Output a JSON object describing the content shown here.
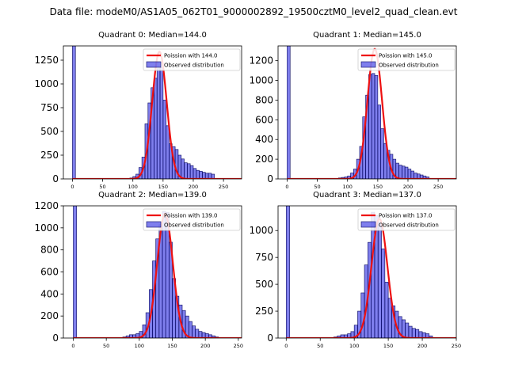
{
  "figure": {
    "suptitle": "Data file: modeM0/AS1A05_062T01_9000002892_19500cztM0_level2_quad_clean.evt"
  },
  "colors": {
    "bar_fill": "#7f7fee",
    "bar_edge": "#1a1a6e",
    "poisson_line": "#ee1111"
  },
  "chart_data": [
    {
      "type": "bar",
      "title": "Quadrant 0: Median=144.0",
      "legend": [
        "Poission with 144.0",
        "Observed distribution"
      ],
      "legend_position": "top-right",
      "xlim": [
        -15,
        280
      ],
      "ylim": [
        0,
        1400
      ],
      "xticks": [
        0,
        50,
        100,
        150,
        200,
        250
      ],
      "yticks": [
        0,
        250,
        500,
        750,
        1000,
        1250
      ],
      "bin_width": 5,
      "bins": [
        0,
        90,
        95,
        100,
        105,
        110,
        115,
        120,
        125,
        130,
        135,
        140,
        145,
        150,
        155,
        160,
        165,
        170,
        175,
        180,
        185,
        190,
        195,
        200,
        205,
        210,
        215,
        220,
        225,
        230
      ],
      "counts": [
        1400,
        5,
        10,
        25,
        50,
        120,
        230,
        580,
        800,
        960,
        1060,
        1160,
        1170,
        830,
        560,
        370,
        340,
        310,
        250,
        210,
        170,
        160,
        140,
        110,
        90,
        80,
        70,
        60,
        60,
        50
      ],
      "poisson_mean": 144.0,
      "poisson_peak": 1340
    },
    {
      "type": "bar",
      "title": "Quadrant 1: Median=145.0",
      "legend": [
        "Poission with 145.0",
        "Observed distribution"
      ],
      "legend_position": "top-right",
      "xlim": [
        -15,
        280
      ],
      "ylim": [
        0,
        1350
      ],
      "xticks": [
        0,
        50,
        100,
        150,
        200,
        250
      ],
      "yticks": [
        0,
        200,
        400,
        600,
        800,
        1000,
        1200
      ],
      "bin_width": 5,
      "bins": [
        0,
        85,
        90,
        95,
        100,
        105,
        110,
        115,
        120,
        125,
        130,
        135,
        140,
        145,
        150,
        155,
        160,
        165,
        170,
        175,
        180,
        185,
        190,
        195,
        200,
        205,
        210,
        215,
        220,
        225,
        230
      ],
      "counts": [
        1350,
        10,
        15,
        20,
        30,
        60,
        100,
        200,
        330,
        630,
        850,
        1060,
        1070,
        1050,
        750,
        510,
        360,
        290,
        250,
        200,
        160,
        140,
        130,
        120,
        100,
        80,
        60,
        50,
        40,
        30,
        20
      ],
      "poisson_mean": 145.0,
      "poisson_peak": 1320
    },
    {
      "type": "bar",
      "title": "Quadrant 2: Median=139.0",
      "legend": [
        "Poission with 139.0",
        "Observed distribution"
      ],
      "legend_position": "top-right",
      "xlim": [
        -15,
        255
      ],
      "ylim": [
        0,
        1200
      ],
      "xticks": [
        0,
        50,
        100,
        150,
        200,
        250
      ],
      "yticks": [
        0,
        200,
        400,
        600,
        800,
        1000,
        1200
      ],
      "bin_width": 5,
      "bins": [
        0,
        75,
        80,
        85,
        90,
        95,
        100,
        105,
        110,
        115,
        120,
        125,
        130,
        135,
        140,
        145,
        150,
        155,
        160,
        165,
        170,
        175,
        180,
        185,
        190,
        195,
        200,
        205,
        210,
        215
      ],
      "counts": [
        1200,
        10,
        20,
        30,
        30,
        40,
        60,
        120,
        230,
        440,
        700,
        900,
        1030,
        1150,
        1140,
        870,
        540,
        380,
        300,
        250,
        200,
        150,
        110,
        80,
        60,
        50,
        40,
        30,
        20,
        10
      ],
      "poisson_mean": 139.0,
      "poisson_peak": 1130
    },
    {
      "type": "bar",
      "title": "Quadrant 3: Median=137.0",
      "legend": [
        "Poission with 137.0",
        "Observed distribution"
      ],
      "legend_position": "top-right",
      "xlim": [
        -12,
        250
      ],
      "ylim": [
        0,
        1230
      ],
      "xticks": [
        0,
        50,
        100,
        150,
        200,
        250
      ],
      "yticks": [
        0,
        250,
        500,
        750,
        1000
      ],
      "bin_width": 5,
      "bins": [
        0,
        70,
        75,
        80,
        85,
        90,
        95,
        100,
        105,
        110,
        115,
        120,
        125,
        130,
        135,
        140,
        145,
        150,
        155,
        160,
        165,
        170,
        175,
        180,
        185,
        190,
        195,
        200,
        205,
        210
      ],
      "counts": [
        1230,
        10,
        20,
        30,
        30,
        40,
        60,
        120,
        250,
        420,
        680,
        890,
        1170,
        1140,
        1080,
        830,
        520,
        370,
        300,
        250,
        200,
        170,
        140,
        110,
        90,
        80,
        60,
        50,
        40,
        20
      ],
      "poisson_mean": 137.0,
      "poisson_peak": 1110
    }
  ]
}
